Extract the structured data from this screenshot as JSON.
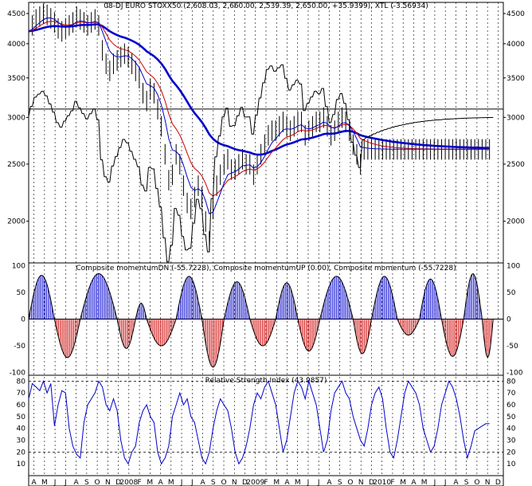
{
  "chart_data": [
    {
      "type": "ohlc",
      "title": "08-DJ EURO STOXX50 (2,608.03, 2,660.00, 2,539.39, 2,650.00, +35.9399), XTL (-3.56934)",
      "yticks": [
        4500,
        4000,
        3500,
        3000,
        2500,
        2000
      ],
      "ylim": [
        1700,
        4700
      ],
      "scale": "log",
      "horizontal_line": 3100,
      "series": [
        {
          "name": "price",
          "color": "#000000",
          "x": [
            0,
            4,
            8,
            12,
            16,
            20,
            24,
            28,
            32,
            36,
            40,
            44,
            48,
            52,
            56,
            60,
            64,
            68,
            72,
            76,
            80,
            84,
            88,
            92,
            96,
            100,
            104,
            108,
            112,
            116,
            120,
            124,
            128,
            132,
            136,
            140,
            144,
            148,
            152,
            156,
            160,
            164,
            168,
            172,
            176,
            180,
            184,
            188,
            192,
            196,
            200,
            204,
            208,
            212,
            216,
            220,
            224,
            228,
            232,
            236,
            240,
            244,
            248,
            252,
            256,
            260,
            264,
            268,
            272,
            276,
            280,
            284,
            288,
            292,
            296,
            300,
            304,
            308,
            312,
            316,
            320,
            324,
            328,
            332,
            336,
            340,
            344,
            348,
            352,
            356,
            360,
            364,
            368,
            372,
            376,
            380,
            384,
            388,
            392,
            396,
            400,
            404,
            408,
            412,
            416,
            420,
            424,
            428,
            432,
            436,
            440,
            444,
            448,
            452,
            456,
            460,
            464,
            468,
            472,
            476,
            480,
            484,
            488,
            492,
            496,
            500
          ],
          "y": [
            4200,
            4300,
            4400,
            4450,
            4500,
            4480,
            4420,
            4350,
            4250,
            4200,
            4250,
            4300,
            4350,
            4450,
            4400,
            4350,
            4300,
            4350,
            4400,
            4300,
            3900,
            3700,
            3600,
            3700,
            3750,
            3800,
            3850,
            3800,
            3700,
            3600,
            3500,
            3300,
            3200,
            3350,
            3300,
            3100,
            2900,
            2600,
            2350,
            2400,
            2600,
            2500,
            2300,
            2150,
            2100,
            2200,
            2300,
            2200,
            2000,
            1850,
            2100,
            2300,
            2400,
            2500,
            2550,
            2450,
            2450,
            2500,
            2550,
            2500,
            2500,
            2400,
            2500,
            2600,
            2700,
            2800,
            2850,
            2850,
            2900,
            2950,
            2900,
            2850,
            2900,
            2950,
            2950,
            2800,
            2850,
            2900,
            2950,
            2950,
            3000,
            2900,
            2800,
            2850,
            2950,
            3000,
            2950,
            2850,
            2700,
            2600,
            2500,
            2650,
            2650,
            2650,
            2650,
            2650,
            2650,
            2650,
            2650,
            2650,
            2650,
            2650,
            2650,
            2650,
            2650,
            2650,
            2650,
            2650,
            2650,
            2650,
            2650,
            2650,
            2650,
            2650,
            2650,
            2650,
            2650,
            2650,
            2650,
            2650,
            2650,
            2650,
            2650,
            2650,
            2650,
            2650
          ]
        }
      ],
      "moving_averages": [
        {
          "name": "short",
          "color": "#0000cc"
        },
        {
          "name": "medium",
          "color": "#cc0000"
        },
        {
          "name": "long",
          "color": "#0000cc"
        }
      ]
    },
    {
      "type": "bar",
      "title": "Composite momentumDN (-55.7228), Composite momentumUP (0.00), Composite momentum (-55.7228)",
      "yticks": [
        100,
        50,
        0,
        -50,
        -100
      ],
      "ylim": [
        -105,
        105
      ],
      "up_color": "#0000cc",
      "down_color": "#cc0000",
      "cycles": [
        {
          "start": 0,
          "end": 28,
          "peak": 82
        },
        {
          "start": 28,
          "end": 56,
          "peak": -72
        },
        {
          "start": 56,
          "end": 96,
          "peak": 85
        },
        {
          "start": 96,
          "end": 116,
          "peak": -55
        },
        {
          "start": 116,
          "end": 128,
          "peak": 30
        },
        {
          "start": 128,
          "end": 160,
          "peak": -50
        },
        {
          "start": 160,
          "end": 188,
          "peak": 80
        },
        {
          "start": 188,
          "end": 212,
          "peak": -90
        },
        {
          "start": 212,
          "end": 240,
          "peak": 70
        },
        {
          "start": 240,
          "end": 268,
          "peak": -50
        },
        {
          "start": 268,
          "end": 292,
          "peak": 68
        },
        {
          "start": 292,
          "end": 316,
          "peak": -60
        },
        {
          "start": 316,
          "end": 352,
          "peak": 80
        },
        {
          "start": 352,
          "end": 372,
          "peak": -65
        },
        {
          "start": 372,
          "end": 400,
          "peak": 80
        },
        {
          "start": 400,
          "end": 424,
          "peak": -30
        },
        {
          "start": 424,
          "end": 448,
          "peak": 75
        },
        {
          "start": 448,
          "end": 472,
          "peak": -70
        },
        {
          "start": 472,
          "end": 492,
          "peak": 85
        },
        {
          "start": 492,
          "end": 504,
          "peak": -72
        }
      ]
    },
    {
      "type": "line",
      "title": "Relative Strength Index (43.9857)",
      "yticks": [
        80,
        70,
        60,
        50,
        40,
        30,
        20,
        10
      ],
      "ylim": [
        0,
        85
      ],
      "dashed_levels": [
        80,
        20
      ],
      "series": [
        {
          "name": "RSI",
          "color": "#0000cc",
          "x": [
            0,
            4,
            8,
            12,
            16,
            20,
            24,
            28,
            32,
            36,
            40,
            44,
            48,
            52,
            56,
            60,
            64,
            68,
            72,
            76,
            80,
            84,
            88,
            92,
            96,
            100,
            104,
            108,
            112,
            116,
            120,
            124,
            128,
            132,
            136,
            140,
            144,
            148,
            152,
            156,
            160,
            164,
            168,
            172,
            176,
            180,
            184,
            188,
            192,
            196,
            200,
            204,
            208,
            212,
            216,
            220,
            224,
            228,
            232,
            236,
            240,
            244,
            248,
            252,
            256,
            260,
            264,
            268,
            272,
            276,
            280,
            284,
            288,
            292,
            296,
            300,
            304,
            308,
            312,
            316,
            320,
            324,
            328,
            332,
            336,
            340,
            344,
            348,
            352,
            356,
            360,
            364,
            368,
            372,
            376,
            380,
            384,
            388,
            392,
            396,
            400,
            404,
            408,
            412,
            416,
            420,
            424,
            428,
            432,
            436,
            440,
            444,
            448,
            452,
            456,
            460,
            464,
            468,
            472,
            476,
            480,
            484,
            488,
            492,
            496,
            500
          ],
          "y": [
            65,
            78,
            75,
            72,
            80,
            70,
            78,
            42,
            60,
            72,
            70,
            40,
            25,
            18,
            15,
            45,
            60,
            65,
            70,
            80,
            75,
            60,
            55,
            65,
            55,
            30,
            15,
            10,
            20,
            25,
            45,
            55,
            60,
            50,
            45,
            20,
            10,
            15,
            25,
            50,
            60,
            70,
            60,
            65,
            50,
            45,
            30,
            15,
            10,
            20,
            40,
            55,
            65,
            60,
            55,
            40,
            20,
            10,
            15,
            25,
            40,
            60,
            70,
            65,
            75,
            80,
            70,
            60,
            40,
            20,
            30,
            50,
            70,
            80,
            75,
            65,
            80,
            70,
            60,
            40,
            20,
            30,
            55,
            70,
            75,
            80,
            70,
            65,
            50,
            40,
            30,
            25,
            40,
            60,
            70,
            75,
            65,
            40,
            20,
            15,
            30,
            50,
            70,
            80,
            75,
            70,
            60,
            40,
            30,
            20,
            25,
            40,
            60,
            70,
            80,
            75,
            65,
            50,
            30,
            15,
            25,
            38,
            40,
            42,
            44,
            44
          ]
        }
      ]
    }
  ],
  "axis": {
    "xlabels": [
      "A",
      "M",
      "J",
      "J",
      "A",
      "S",
      "O",
      "N",
      "D",
      "2008",
      "F",
      "M",
      "A",
      "M",
      "J",
      "J",
      "A",
      "S",
      "O",
      "N",
      "D",
      "2009",
      "F",
      "M",
      "A",
      "M",
      "J",
      "J",
      "A",
      "S",
      "O",
      "N",
      "D",
      "2010",
      "F",
      "M",
      "A",
      "M",
      "J",
      "J",
      "A",
      "S",
      "O",
      "N",
      "D"
    ]
  }
}
